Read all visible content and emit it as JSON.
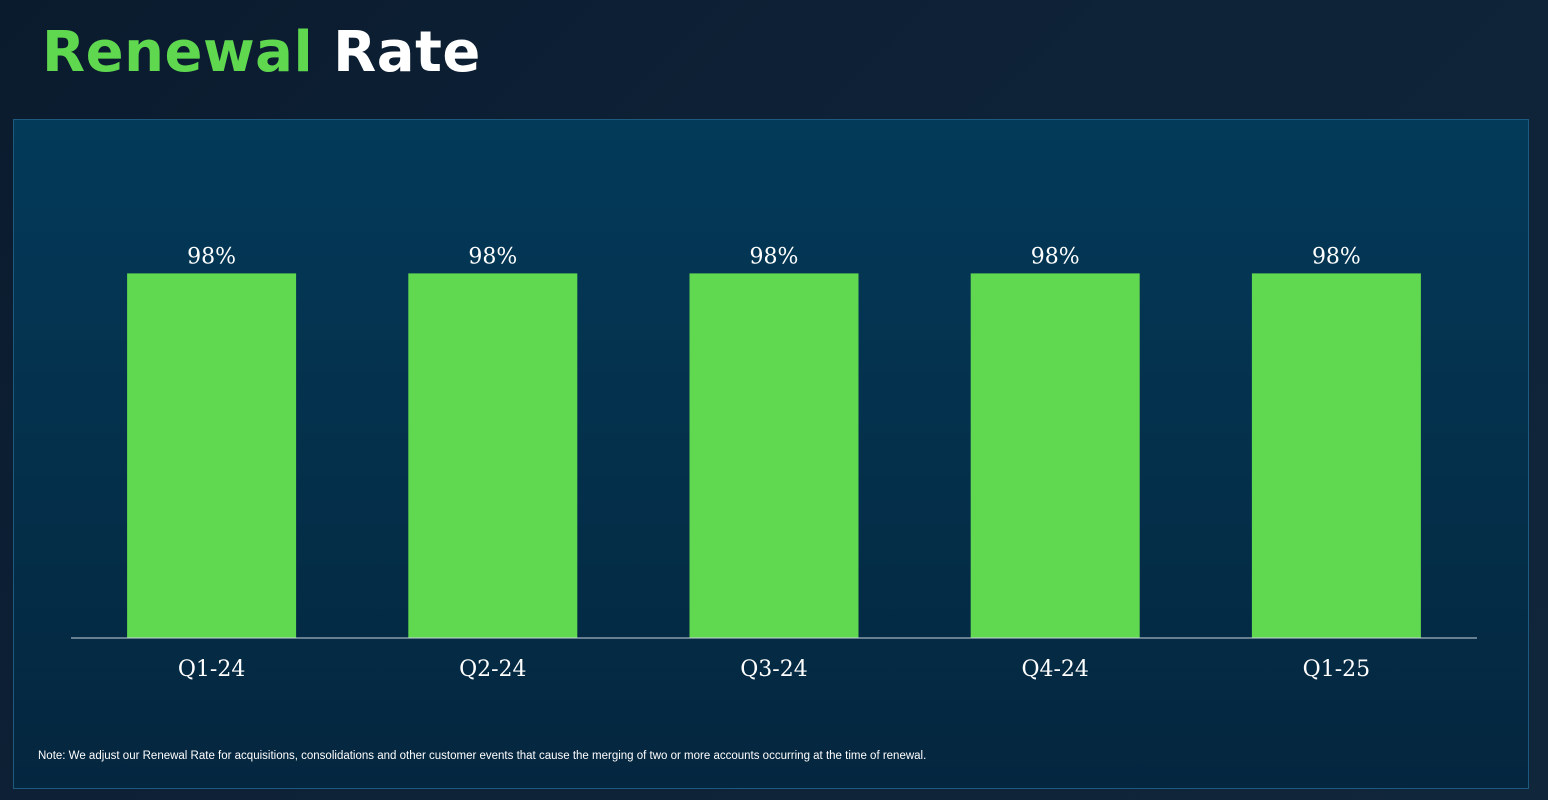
{
  "header": {
    "title_accent": "Renewal",
    "title_rest": "Rate"
  },
  "colors": {
    "accent": "#5fd84f",
    "bar": "#60d850",
    "panel_bg": "#033a59",
    "text": "#ffffff"
  },
  "chart_data": {
    "type": "bar",
    "categories": [
      "Q1-24",
      "Q2-24",
      "Q3-24",
      "Q4-24",
      "Q1-25"
    ],
    "values": [
      98,
      98,
      98,
      98,
      98
    ],
    "data_labels": [
      "98%",
      "98%",
      "98%",
      "98%",
      "98%"
    ],
    "ylim": [
      0,
      100
    ],
    "grid": false,
    "legend": "none"
  },
  "footer": {
    "note": "Note: We adjust our Renewal Rate for acquisitions, consolidations and other customer events that cause the merging of two or more accounts occurring at the time of renewal."
  }
}
